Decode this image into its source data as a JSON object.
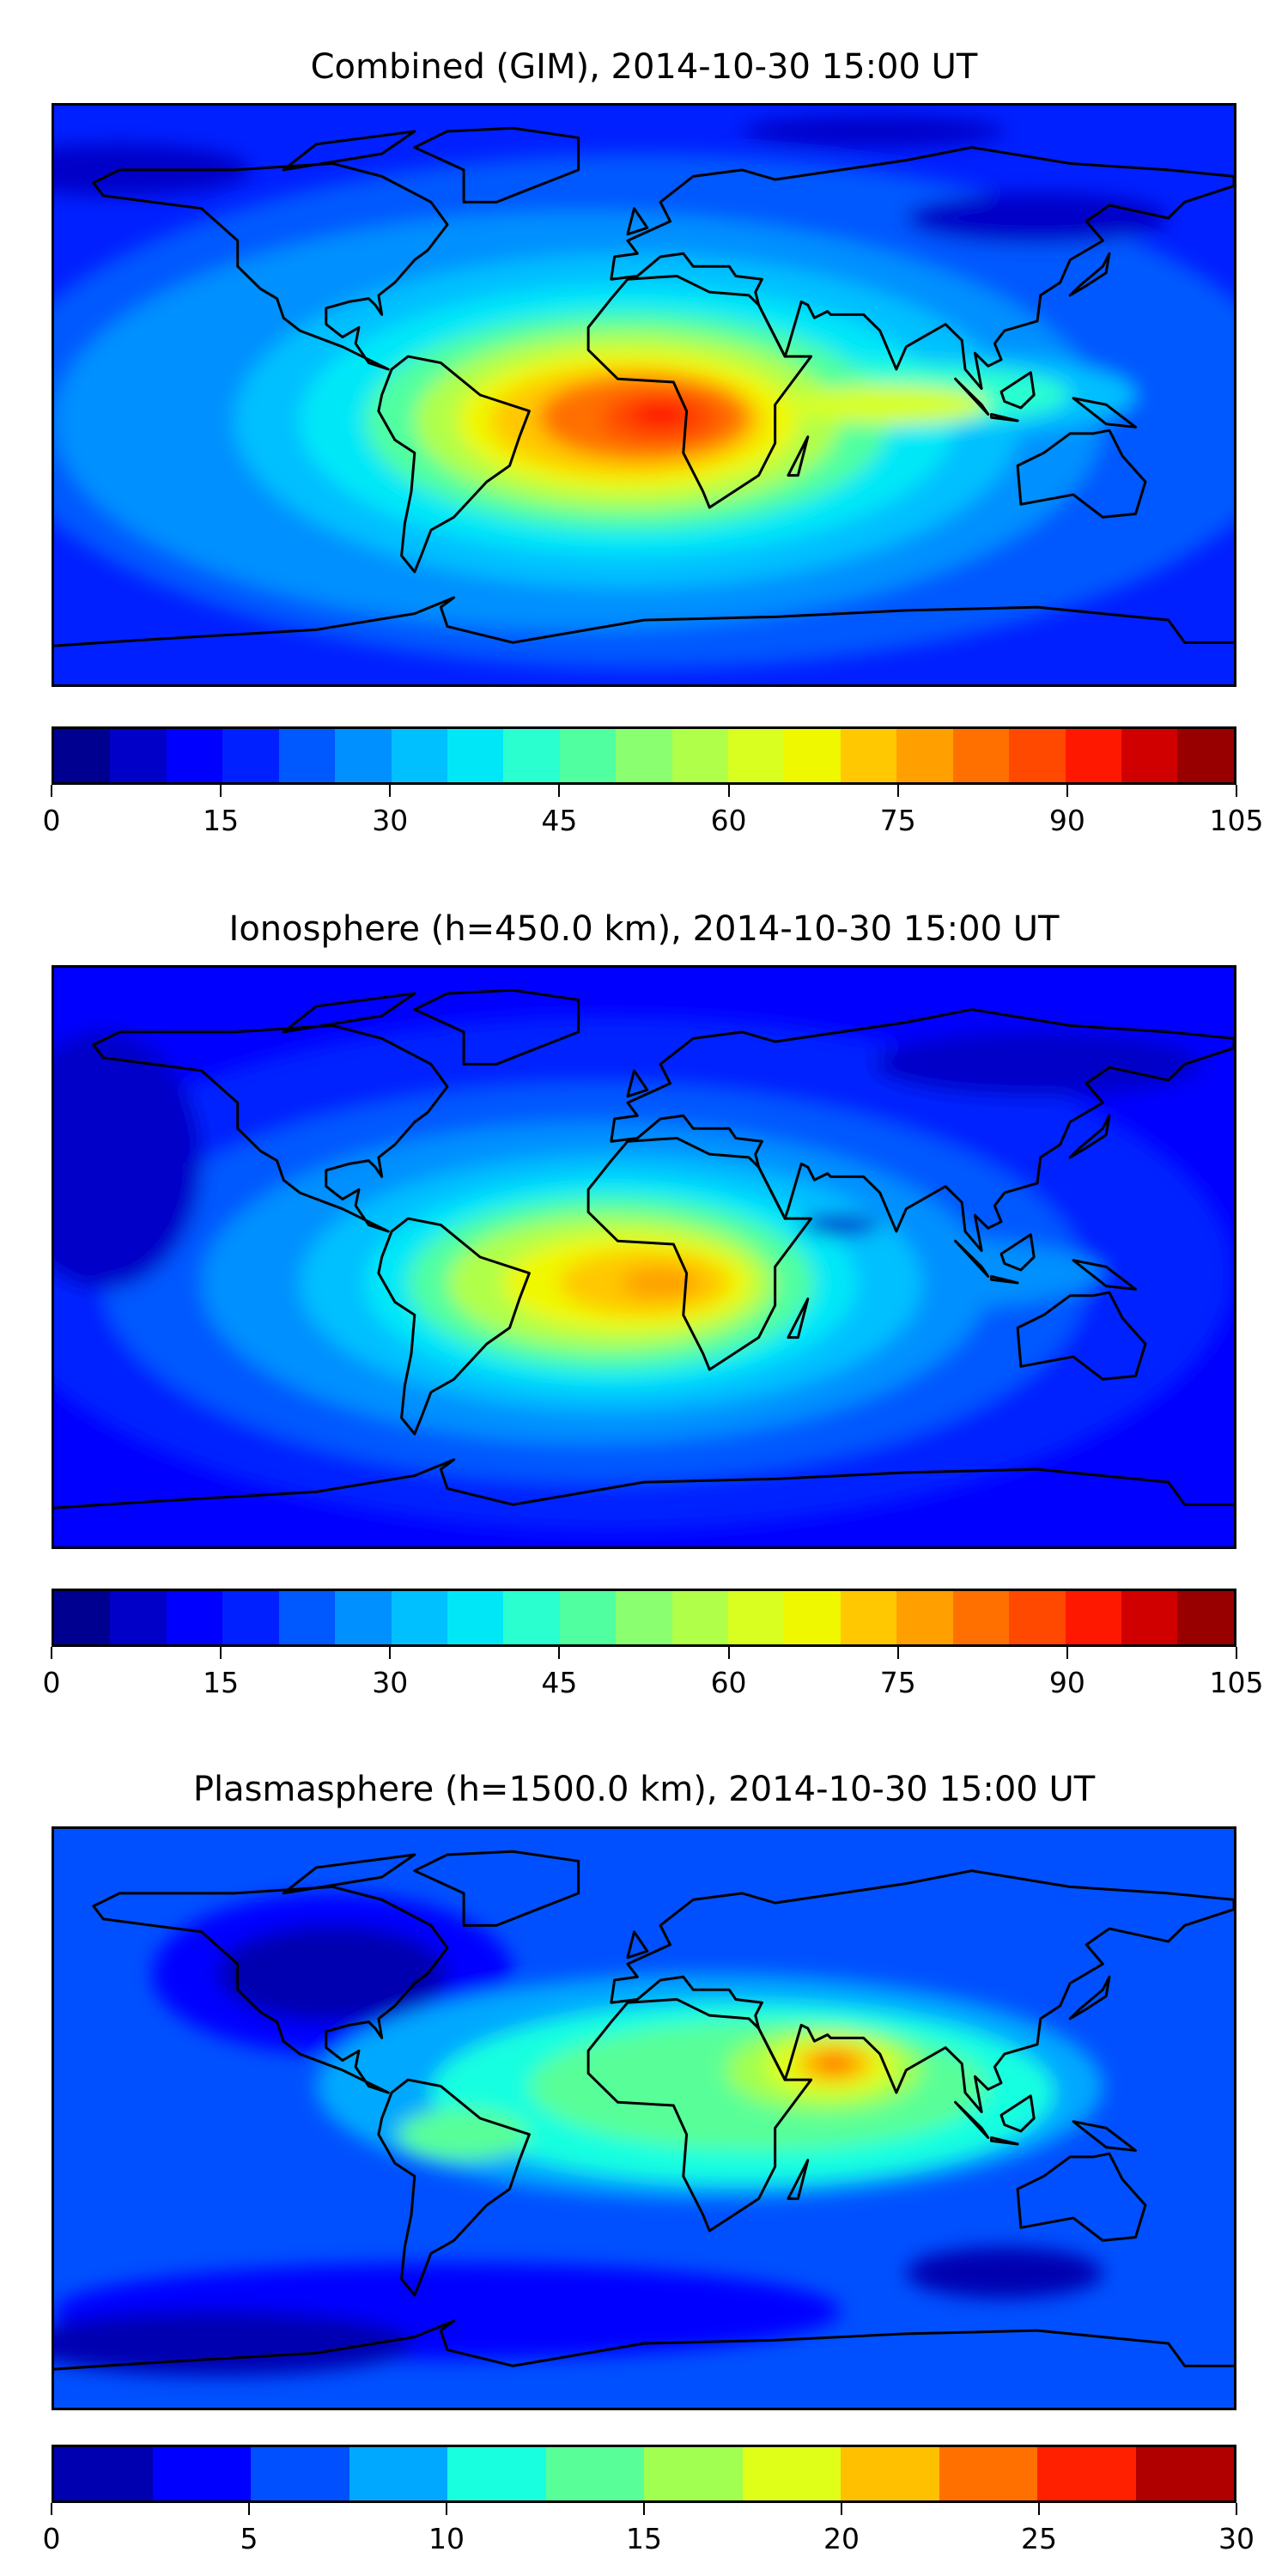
{
  "chart_data": [
    {
      "type": "heatmap",
      "title": "Combined (GIM), 2014-10-30 15:00 UT",
      "projection": "equirectangular world map with coastlines",
      "colormap": "jet",
      "levels_min": 0,
      "levels_max": 105,
      "level_step": 5,
      "colors": [
        "#000090",
        "#0000c8",
        "#0000ff",
        "#0020ff",
        "#0058ff",
        "#0090ff",
        "#00c0ff",
        "#00e8f8",
        "#2affd0",
        "#50ffa0",
        "#8aff70",
        "#b0ff48",
        "#d8ff20",
        "#f0f800",
        "#ffc800",
        "#ffa000",
        "#ff7000",
        "#ff4800",
        "#ff1800",
        "#d00000",
        "#980000"
      ],
      "colorbar_ticks": [
        "0",
        "15",
        "30",
        "45",
        "60",
        "75",
        "90",
        "105"
      ],
      "colorbar_tick_values": [
        0,
        15,
        30,
        45,
        60,
        75,
        90,
        105
      ],
      "peak": {
        "lon": 5,
        "lat": -8,
        "value": 90
      }
    },
    {
      "type": "heatmap",
      "title": "Ionosphere  (h=450.0 km), 2014-10-30 15:00 UT",
      "projection": "equirectangular world map with coastlines",
      "colormap": "jet",
      "levels_min": 0,
      "levels_max": 105,
      "level_step": 5,
      "colors": [
        "#000090",
        "#0000c8",
        "#0000ff",
        "#0020ff",
        "#0058ff",
        "#0090ff",
        "#00c0ff",
        "#00e8f8",
        "#2affd0",
        "#50ffa0",
        "#8aff70",
        "#b0ff48",
        "#d8ff20",
        "#f0f800",
        "#ffc800",
        "#ffa000",
        "#ff7000",
        "#ff4800",
        "#ff1800",
        "#d00000",
        "#980000"
      ],
      "colorbar_ticks": [
        "0",
        "15",
        "30",
        "45",
        "60",
        "75",
        "90",
        "105"
      ],
      "colorbar_tick_values": [
        0,
        15,
        30,
        45,
        60,
        75,
        90,
        105
      ],
      "peak": {
        "lon": 5,
        "lat": -8,
        "value": 80
      }
    },
    {
      "type": "heatmap",
      "title": "Plasmasphere (h=1500.0 km), 2014-10-30 15:00 UT",
      "projection": "equirectangular world map with coastlines",
      "colormap": "jet",
      "levels_min": 0,
      "levels_max": 30,
      "level_step": 2.5,
      "colors": [
        "#0000b0",
        "#0000ff",
        "#0050ff",
        "#00a8ff",
        "#18ffe0",
        "#58ff98",
        "#a0ff50",
        "#e0ff18",
        "#ffc000",
        "#ff7000",
        "#ff2000",
        "#b00000"
      ],
      "colorbar_ticks": [
        "0",
        "5",
        "10",
        "15",
        "20",
        "25",
        "30"
      ],
      "colorbar_tick_values": [
        0,
        5,
        10,
        15,
        20,
        25,
        30
      ],
      "peak": {
        "lon": 58,
        "lat": 17,
        "value": 23
      }
    }
  ]
}
